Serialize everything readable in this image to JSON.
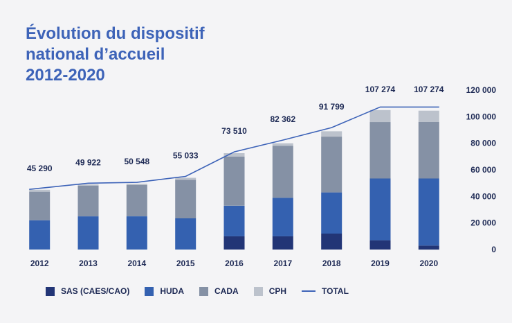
{
  "title_lines": [
    "Évolution du dispositif",
    "national d’accueil",
    "2012-2020"
  ],
  "colors": {
    "SAS (CAES/CAO)": "#223576",
    "HUDA": "#3461b0",
    "CADA": "#8591a5",
    "CPH": "#bcc2cc",
    "TOTAL": "#3d63b8",
    "text": "#1e2a55"
  },
  "chart_data": {
    "type": "bar",
    "title": "Évolution du dispositif national d’accueil 2012-2020",
    "categories": [
      "2012",
      "2013",
      "2014",
      "2015",
      "2016",
      "2017",
      "2018",
      "2019",
      "2020"
    ],
    "series": [
      {
        "name": "SAS (CAES/CAO)",
        "values": [
          0,
          0,
          0,
          0,
          10000,
          10000,
          12000,
          7000,
          3000
        ]
      },
      {
        "name": "HUDA",
        "values": [
          22000,
          25000,
          25000,
          23500,
          23000,
          29000,
          31000,
          46500,
          50500
        ]
      },
      {
        "name": "CADA",
        "values": [
          21500,
          23000,
          23500,
          29000,
          37000,
          39000,
          42000,
          42500,
          42500
        ]
      },
      {
        "name": "CPH",
        "values": [
          1500,
          1000,
          1000,
          1500,
          2500,
          2000,
          4000,
          9000,
          8500
        ]
      }
    ],
    "total": {
      "name": "TOTAL",
      "values": [
        45290,
        49922,
        50548,
        55033,
        73510,
        82362,
        91799,
        107274,
        107274
      ],
      "labels": [
        "45 290",
        "49 922",
        "50 548",
        "55 033",
        "73 510",
        "82 362",
        "91 799",
        "107 274",
        "107 274"
      ]
    },
    "y_ticks": [
      0,
      20000,
      40000,
      60000,
      80000,
      100000,
      120000
    ],
    "y_tick_labels": [
      "0",
      "20 000",
      "40 000",
      "60 000",
      "80 000",
      "100 000",
      "120 000"
    ],
    "ylim": [
      0,
      120000
    ],
    "y_axis_side": "right",
    "stacked": true,
    "grid": false,
    "legend_position": "bottom"
  }
}
